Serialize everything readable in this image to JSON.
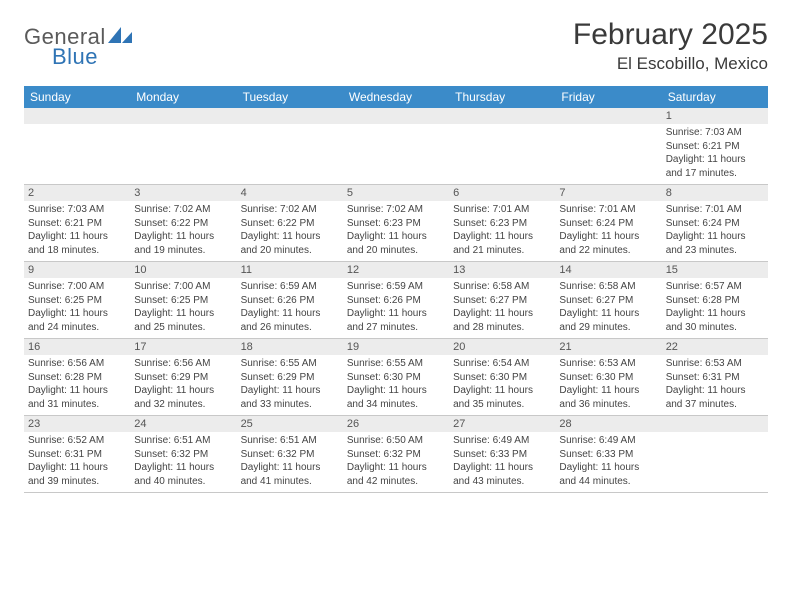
{
  "logo": {
    "text1": "General",
    "text2": "Blue"
  },
  "title": "February 2025",
  "location": "El Escobillo, Mexico",
  "colors": {
    "header_bar": "#3b8bc9",
    "daynum_bg": "#ececec",
    "border": "#c8c8c8",
    "text": "#3a3a3a",
    "logo_blue": "#2f74b5"
  },
  "weekdays": [
    "Sunday",
    "Monday",
    "Tuesday",
    "Wednesday",
    "Thursday",
    "Friday",
    "Saturday"
  ],
  "weeks": [
    [
      {
        "n": "",
        "lines": []
      },
      {
        "n": "",
        "lines": []
      },
      {
        "n": "",
        "lines": []
      },
      {
        "n": "",
        "lines": []
      },
      {
        "n": "",
        "lines": []
      },
      {
        "n": "",
        "lines": []
      },
      {
        "n": "1",
        "lines": [
          "Sunrise: 7:03 AM",
          "Sunset: 6:21 PM",
          "Daylight: 11 hours and 17 minutes."
        ]
      }
    ],
    [
      {
        "n": "2",
        "lines": [
          "Sunrise: 7:03 AM",
          "Sunset: 6:21 PM",
          "Daylight: 11 hours and 18 minutes."
        ]
      },
      {
        "n": "3",
        "lines": [
          "Sunrise: 7:02 AM",
          "Sunset: 6:22 PM",
          "Daylight: 11 hours and 19 minutes."
        ]
      },
      {
        "n": "4",
        "lines": [
          "Sunrise: 7:02 AM",
          "Sunset: 6:22 PM",
          "Daylight: 11 hours and 20 minutes."
        ]
      },
      {
        "n": "5",
        "lines": [
          "Sunrise: 7:02 AM",
          "Sunset: 6:23 PM",
          "Daylight: 11 hours and 20 minutes."
        ]
      },
      {
        "n": "6",
        "lines": [
          "Sunrise: 7:01 AM",
          "Sunset: 6:23 PM",
          "Daylight: 11 hours and 21 minutes."
        ]
      },
      {
        "n": "7",
        "lines": [
          "Sunrise: 7:01 AM",
          "Sunset: 6:24 PM",
          "Daylight: 11 hours and 22 minutes."
        ]
      },
      {
        "n": "8",
        "lines": [
          "Sunrise: 7:01 AM",
          "Sunset: 6:24 PM",
          "Daylight: 11 hours and 23 minutes."
        ]
      }
    ],
    [
      {
        "n": "9",
        "lines": [
          "Sunrise: 7:00 AM",
          "Sunset: 6:25 PM",
          "Daylight: 11 hours and 24 minutes."
        ]
      },
      {
        "n": "10",
        "lines": [
          "Sunrise: 7:00 AM",
          "Sunset: 6:25 PM",
          "Daylight: 11 hours and 25 minutes."
        ]
      },
      {
        "n": "11",
        "lines": [
          "Sunrise: 6:59 AM",
          "Sunset: 6:26 PM",
          "Daylight: 11 hours and 26 minutes."
        ]
      },
      {
        "n": "12",
        "lines": [
          "Sunrise: 6:59 AM",
          "Sunset: 6:26 PM",
          "Daylight: 11 hours and 27 minutes."
        ]
      },
      {
        "n": "13",
        "lines": [
          "Sunrise: 6:58 AM",
          "Sunset: 6:27 PM",
          "Daylight: 11 hours and 28 minutes."
        ]
      },
      {
        "n": "14",
        "lines": [
          "Sunrise: 6:58 AM",
          "Sunset: 6:27 PM",
          "Daylight: 11 hours and 29 minutes."
        ]
      },
      {
        "n": "15",
        "lines": [
          "Sunrise: 6:57 AM",
          "Sunset: 6:28 PM",
          "Daylight: 11 hours and 30 minutes."
        ]
      }
    ],
    [
      {
        "n": "16",
        "lines": [
          "Sunrise: 6:56 AM",
          "Sunset: 6:28 PM",
          "Daylight: 11 hours and 31 minutes."
        ]
      },
      {
        "n": "17",
        "lines": [
          "Sunrise: 6:56 AM",
          "Sunset: 6:29 PM",
          "Daylight: 11 hours and 32 minutes."
        ]
      },
      {
        "n": "18",
        "lines": [
          "Sunrise: 6:55 AM",
          "Sunset: 6:29 PM",
          "Daylight: 11 hours and 33 minutes."
        ]
      },
      {
        "n": "19",
        "lines": [
          "Sunrise: 6:55 AM",
          "Sunset: 6:30 PM",
          "Daylight: 11 hours and 34 minutes."
        ]
      },
      {
        "n": "20",
        "lines": [
          "Sunrise: 6:54 AM",
          "Sunset: 6:30 PM",
          "Daylight: 11 hours and 35 minutes."
        ]
      },
      {
        "n": "21",
        "lines": [
          "Sunrise: 6:53 AM",
          "Sunset: 6:30 PM",
          "Daylight: 11 hours and 36 minutes."
        ]
      },
      {
        "n": "22",
        "lines": [
          "Sunrise: 6:53 AM",
          "Sunset: 6:31 PM",
          "Daylight: 11 hours and 37 minutes."
        ]
      }
    ],
    [
      {
        "n": "23",
        "lines": [
          "Sunrise: 6:52 AM",
          "Sunset: 6:31 PM",
          "Daylight: 11 hours and 39 minutes."
        ]
      },
      {
        "n": "24",
        "lines": [
          "Sunrise: 6:51 AM",
          "Sunset: 6:32 PM",
          "Daylight: 11 hours and 40 minutes."
        ]
      },
      {
        "n": "25",
        "lines": [
          "Sunrise: 6:51 AM",
          "Sunset: 6:32 PM",
          "Daylight: 11 hours and 41 minutes."
        ]
      },
      {
        "n": "26",
        "lines": [
          "Sunrise: 6:50 AM",
          "Sunset: 6:32 PM",
          "Daylight: 11 hours and 42 minutes."
        ]
      },
      {
        "n": "27",
        "lines": [
          "Sunrise: 6:49 AM",
          "Sunset: 6:33 PM",
          "Daylight: 11 hours and 43 minutes."
        ]
      },
      {
        "n": "28",
        "lines": [
          "Sunrise: 6:49 AM",
          "Sunset: 6:33 PM",
          "Daylight: 11 hours and 44 minutes."
        ]
      },
      {
        "n": "",
        "lines": []
      }
    ]
  ]
}
